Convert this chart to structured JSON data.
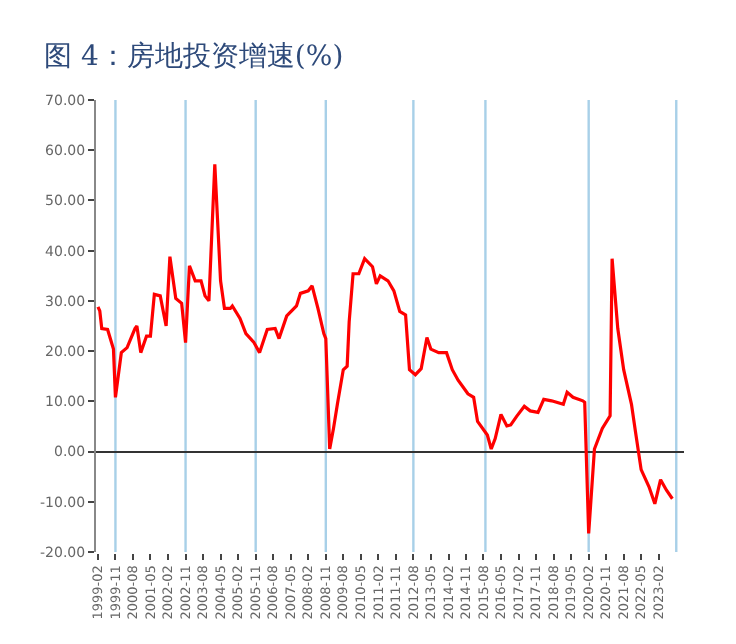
{
  "chart_data": {
    "type": "line",
    "title": "图 4：房地投资增速(%)",
    "x": [
      "1999-02",
      "1999-03",
      "1999-04",
      "1999-07",
      "1999-10",
      "1999-11",
      "2000-02",
      "2000-05",
      "2000-09",
      "2000-10",
      "2000-12",
      "2001-03",
      "2001-05",
      "2001-07",
      "2001-10",
      "2002-01",
      "2002-03",
      "2002-06",
      "2002-09",
      "2002-11",
      "2003-01",
      "2003-04",
      "2003-07",
      "2003-09",
      "2003-11",
      "2004-02",
      "2004-05",
      "2004-07",
      "2004-10",
      "2004-11",
      "2005-03",
      "2005-06",
      "2005-10",
      "2006-01",
      "2006-05",
      "2006-09",
      "2006-11",
      "2007-03",
      "2007-08",
      "2007-10",
      "2008-02",
      "2008-04",
      "2008-07",
      "2008-10",
      "2008-11",
      "2009-01",
      "2009-03",
      "2009-05",
      "2009-08",
      "2009-10",
      "2009-11",
      "2010-01",
      "2010-04",
      "2010-07",
      "2010-11",
      "2011-01",
      "2011-03",
      "2011-07",
      "2011-10",
      "2012-01",
      "2012-04",
      "2012-06",
      "2012-09",
      "2012-12",
      "2013-03",
      "2013-05",
      "2013-09",
      "2014-01",
      "2014-04",
      "2014-07",
      "2014-12",
      "2015-03",
      "2015-05",
      "2015-10",
      "2015-12",
      "2016-02",
      "2016-05",
      "2016-08",
      "2016-10",
      "2017-01",
      "2017-05",
      "2017-08",
      "2017-12",
      "2018-03",
      "2018-07",
      "2019-01",
      "2019-03",
      "2019-06",
      "2019-11",
      "2019-12",
      "2020-02",
      "2020-05",
      "2020-09",
      "2021-01",
      "2021-02",
      "2021-05",
      "2021-08",
      "2021-12",
      "2022-02",
      "2022-05",
      "2022-09",
      "2022-12",
      "2023-03",
      "2023-06",
      "2023-09"
    ],
    "series": [
      {
        "color": "#ff0000",
        "values": [
          28.8,
          28,
          24.5,
          24.3,
          20.4,
          10.8,
          19.7,
          20.7,
          24.5,
          25,
          19.7,
          23,
          23,
          31.3,
          31,
          25,
          38.8,
          30.5,
          29.5,
          21.7,
          37,
          34,
          34,
          31,
          30,
          57.2,
          34,
          28.5,
          28.5,
          29,
          26.5,
          23.5,
          21.8,
          19.7,
          24.3,
          24.5,
          22.5,
          27,
          29,
          31.5,
          32,
          33,
          28.5,
          23.5,
          22.5,
          0.5,
          4.6,
          9.4,
          16.3,
          17,
          25.8,
          35.4,
          35.4,
          38.4,
          36.8,
          33.4,
          35,
          34,
          32,
          27.9,
          27.2,
          16.3,
          15.3,
          16.5,
          22.7,
          20.4,
          19.7,
          19.7,
          16.3,
          14.2,
          11.5,
          10.8,
          6,
          3.3,
          0.5,
          2.6,
          7.4,
          5.1,
          5.3,
          7,
          9,
          8.1,
          7.8,
          10.4,
          10.1,
          9.4,
          11.8,
          10.8,
          10.1,
          9.8,
          -16.3,
          0.5,
          4.6,
          7.1,
          38.4,
          24.5,
          16.3,
          9.4,
          4,
          -3.6,
          -7,
          -10.4,
          -5.6,
          -7.7,
          -9.4
        ]
      }
    ],
    "xlim": [
      "1999-01",
      "2024-03"
    ],
    "xticks": [
      "1999-02",
      "1999-11",
      "2000-08",
      "2001-05",
      "2002-02",
      "2002-11",
      "2003-08",
      "2004-05",
      "2005-02",
      "2005-11",
      "2006-08",
      "2007-05",
      "2008-02",
      "2008-11",
      "2009-08",
      "2010-05",
      "2011-02",
      "2011-11",
      "2012-08",
      "2013-05",
      "2014-02",
      "2014-11",
      "2015-08",
      "2016-05",
      "2017-02",
      "2017-11",
      "2018-08",
      "2019-05",
      "2020-02",
      "2020-11",
      "2021-08",
      "2022-05",
      "2023-02"
    ],
    "ylim": [
      -20,
      70
    ],
    "yticks": [
      {
        "value": -20,
        "label": "-20.00"
      },
      {
        "value": -10,
        "label": "-10.00"
      },
      {
        "value": 0,
        "label": "0.00"
      },
      {
        "value": 10,
        "label": "10.00"
      },
      {
        "value": 20,
        "label": "20.00"
      },
      {
        "value": 30,
        "label": "30.00"
      },
      {
        "value": 40,
        "label": "40.00"
      },
      {
        "value": 50,
        "label": "50.00"
      },
      {
        "value": 60,
        "label": "60.00"
      },
      {
        "value": 70,
        "label": "70.00"
      }
    ],
    "ref_lines": [
      {
        "axis": "x",
        "value": "1999-11",
        "color": "#a8d0e8"
      },
      {
        "axis": "x",
        "value": "2002-11",
        "color": "#a8d0e8"
      },
      {
        "axis": "x",
        "value": "2005-11",
        "color": "#a8d0e8"
      },
      {
        "axis": "x",
        "value": "2008-11",
        "color": "#a8d0e8"
      },
      {
        "axis": "x",
        "value": "2012-08",
        "color": "#a8d0e8"
      },
      {
        "axis": "x",
        "value": "2015-09",
        "color": "#a8d0e8"
      },
      {
        "axis": "x",
        "value": "2020-02",
        "color": "#a8d0e8"
      },
      {
        "axis": "x",
        "value": "2023-11",
        "color": "#a8d0e8"
      }
    ],
    "grid": false,
    "legend": false,
    "marker": "none",
    "line_style": "solid"
  }
}
